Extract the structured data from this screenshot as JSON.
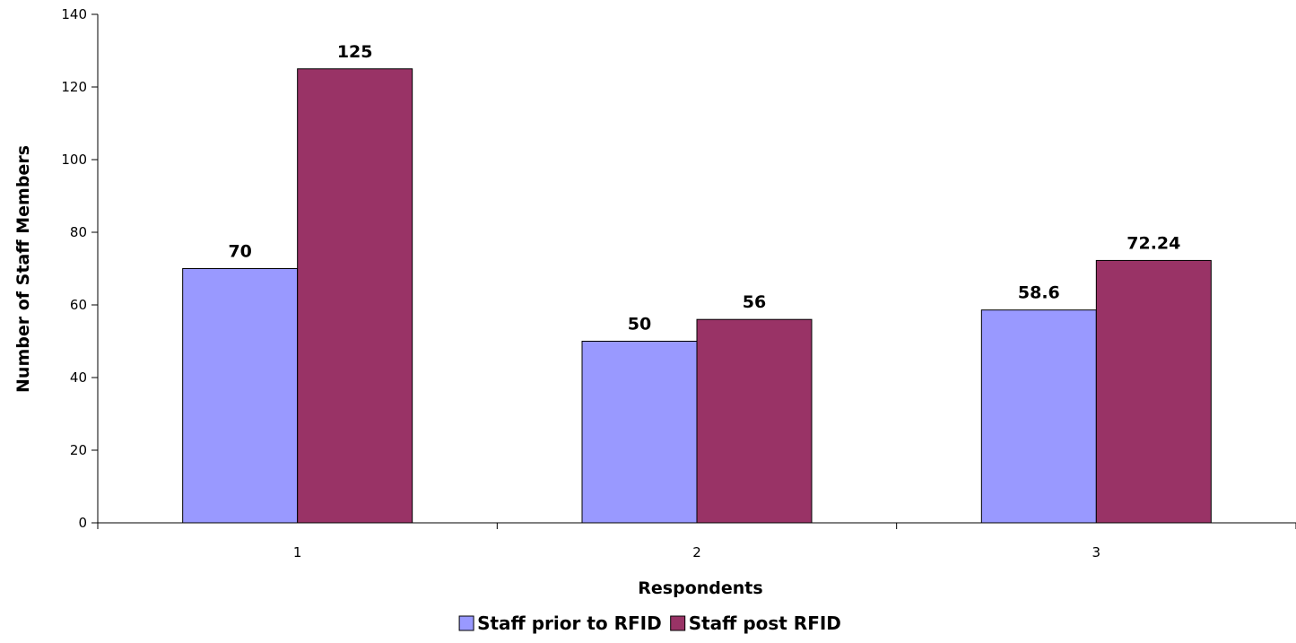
{
  "chart_data": {
    "type": "bar",
    "title": "",
    "xlabel": "Respondents",
    "ylabel": "Number of Staff Members",
    "categories": [
      "1",
      "2",
      "3"
    ],
    "series": [
      {
        "name": "Staff prior to RFID",
        "color": "#9999FF",
        "values": [
          70,
          50,
          58.6
        ],
        "labels": [
          "70",
          "50",
          "58.6"
        ]
      },
      {
        "name": "Staff post RFID",
        "color": "#993366",
        "values": [
          125,
          56,
          72.24
        ],
        "labels": [
          "125",
          "56",
          "72.24"
        ]
      }
    ],
    "ylim": [
      0,
      140
    ],
    "yticks": [
      0,
      20,
      40,
      60,
      80,
      100,
      120,
      140
    ],
    "ytick_labels": [
      "0",
      "20",
      "40",
      "60",
      "80",
      "100",
      "120",
      "140"
    ],
    "grid": false,
    "legend_position": "bottom"
  }
}
